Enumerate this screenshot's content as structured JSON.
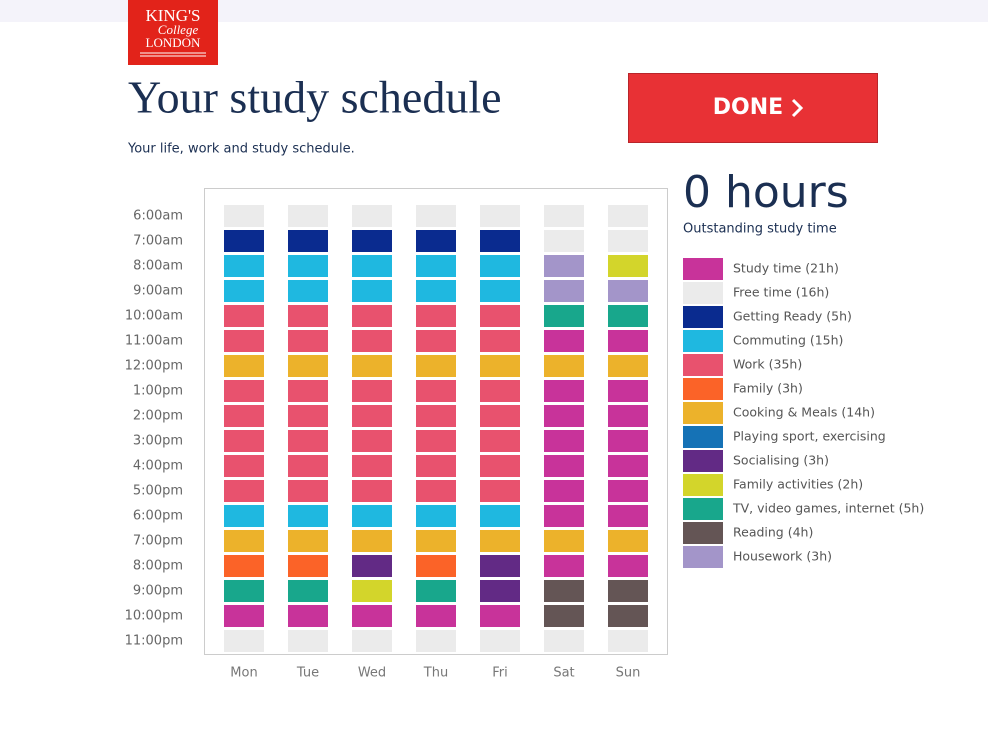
{
  "logo": {
    "line1": "KING'S",
    "line2": "College",
    "line3": "LONDON"
  },
  "header": {
    "title": "Your study schedule",
    "subtitle": "Your life, work and study schedule."
  },
  "button": {
    "label": "DONE"
  },
  "summary": {
    "value": "0 hours",
    "caption": "Outstanding study time"
  },
  "times": [
    "6:00am",
    "7:00am",
    "8:00am",
    "9:00am",
    "10:00am",
    "11:00am",
    "12:00pm",
    "1:00pm",
    "2:00pm",
    "3:00pm",
    "4:00pm",
    "5:00pm",
    "6:00pm",
    "7:00pm",
    "8:00pm",
    "9:00pm",
    "10:00pm",
    "11:00pm"
  ],
  "days": [
    "Mon",
    "Tue",
    "Wed",
    "Thu",
    "Fri",
    "Sat",
    "Sun"
  ],
  "activities": [
    {
      "label": "Study time (21h)",
      "color": "#c8339a"
    },
    {
      "label": "Free time (16h)",
      "color": "#ebebeb"
    },
    {
      "label": "Getting Ready (5h)",
      "color": "#0a2b8f"
    },
    {
      "label": "Commuting (15h)",
      "color": "#1fb8e0"
    },
    {
      "label": "Work (35h)",
      "color": "#e8526e"
    },
    {
      "label": "Family (3h)",
      "color": "#fb6328"
    },
    {
      "label": "Cooking & Meals (14h)",
      "color": "#ecb22b"
    },
    {
      "label": "Playing sport, exercising",
      "color": "#1572b6"
    },
    {
      "label": "Socialising (3h)",
      "color": "#622a85"
    },
    {
      "label": "Family activities (2h)",
      "color": "#d3d52b"
    },
    {
      "label": "TV, video games, internet (5h)",
      "color": "#18a78c"
    },
    {
      "label": "Reading (4h)",
      "color": "#645555"
    },
    {
      "label": "Housework (3h)",
      "color": "#a395c9"
    }
  ],
  "grid": [
    [
      1,
      2,
      3,
      3,
      4,
      4,
      6,
      4,
      4,
      4,
      4,
      4,
      3,
      6,
      5,
      10,
      0,
      1
    ],
    [
      1,
      2,
      3,
      3,
      4,
      4,
      6,
      4,
      4,
      4,
      4,
      4,
      3,
      6,
      5,
      10,
      0,
      1
    ],
    [
      1,
      2,
      3,
      3,
      4,
      4,
      6,
      4,
      4,
      4,
      4,
      4,
      3,
      6,
      8,
      9,
      0,
      1
    ],
    [
      1,
      2,
      3,
      3,
      4,
      4,
      6,
      4,
      4,
      4,
      4,
      4,
      3,
      6,
      5,
      10,
      0,
      1
    ],
    [
      1,
      2,
      3,
      3,
      4,
      4,
      6,
      4,
      4,
      4,
      4,
      4,
      3,
      6,
      8,
      8,
      0,
      1
    ],
    [
      1,
      1,
      12,
      12,
      10,
      0,
      6,
      0,
      0,
      0,
      0,
      0,
      0,
      6,
      0,
      11,
      11,
      1
    ],
    [
      1,
      1,
      9,
      12,
      10,
      0,
      6,
      0,
      0,
      0,
      0,
      0,
      0,
      6,
      0,
      11,
      11,
      1
    ]
  ]
}
